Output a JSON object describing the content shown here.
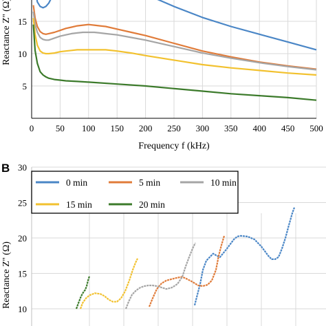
{
  "chart_data": [
    {
      "type": "line",
      "panel_label": "",
      "xlabel": "Frequency f (kHz)",
      "ylabel": "Reactance Z'' (Ω)",
      "xlim": [
        0,
        500
      ],
      "ylim": [
        0,
        20
      ],
      "x_ticks": [
        "0",
        "50",
        "100",
        "150",
        "200",
        "250",
        "300",
        "350",
        "400",
        "450",
        "500"
      ],
      "y_ticks": [
        "5",
        "10",
        "15"
      ],
      "grid": "both",
      "series": [
        {
          "color": "#4a86c6",
          "x": [
            5,
            10,
            15,
            20,
            25,
            30,
            40,
            60,
            80,
            100,
            120,
            150,
            200,
            250,
            300,
            350,
            400,
            450,
            500
          ],
          "y": [
            20.5,
            18.0,
            17.3,
            17.1,
            17.3,
            17.8,
            19.5,
            21.5,
            22.0,
            22.0,
            21.8,
            21.0,
            19.2,
            17.3,
            15.6,
            14.2,
            13.0,
            11.8,
            10.6
          ]
        },
        {
          "color": "#e07b39",
          "x": [
            3,
            6,
            10,
            15,
            20,
            25,
            30,
            40,
            50,
            60,
            70,
            80,
            90,
            100,
            110,
            120,
            130,
            150,
            175,
            200,
            250,
            300,
            350,
            400,
            450,
            500
          ],
          "y": [
            17.5,
            15.5,
            14.2,
            13.4,
            13.1,
            13.0,
            13.1,
            13.3,
            13.6,
            13.9,
            14.1,
            14.3,
            14.4,
            14.5,
            14.4,
            14.3,
            14.2,
            13.8,
            13.3,
            12.8,
            11.6,
            10.4,
            9.5,
            8.7,
            8.1,
            7.6
          ]
        },
        {
          "color": "#a5a5a5",
          "x": [
            3,
            6,
            10,
            15,
            20,
            25,
            30,
            40,
            50,
            60,
            70,
            80,
            90,
            100,
            110,
            120,
            130,
            150,
            175,
            200,
            250,
            300,
            350,
            400,
            450,
            500
          ],
          "y": [
            16.5,
            14.5,
            13.3,
            12.5,
            12.2,
            12.1,
            12.1,
            12.4,
            12.7,
            12.9,
            13.1,
            13.2,
            13.3,
            13.3,
            13.3,
            13.2,
            13.1,
            12.9,
            12.5,
            12.1,
            11.1,
            10.1,
            9.3,
            8.6,
            8.0,
            7.5
          ]
        },
        {
          "color": "#f2c12e",
          "x": [
            3,
            6,
            10,
            15,
            20,
            25,
            30,
            40,
            50,
            60,
            70,
            80,
            90,
            100,
            110,
            120,
            130,
            150,
            175,
            200,
            250,
            300,
            350,
            400,
            450,
            500
          ],
          "y": [
            15.5,
            13.0,
            11.3,
            10.4,
            10.1,
            10.0,
            10.0,
            10.1,
            10.3,
            10.4,
            10.5,
            10.6,
            10.6,
            10.6,
            10.6,
            10.6,
            10.6,
            10.4,
            10.1,
            9.7,
            9.0,
            8.3,
            7.8,
            7.4,
            7.0,
            6.7
          ]
        },
        {
          "color": "#3b7a2a",
          "x": [
            3,
            6,
            10,
            15,
            20,
            25,
            30,
            40,
            50,
            60,
            80,
            100,
            150,
            200,
            250,
            300,
            350,
            400,
            450,
            500
          ],
          "y": [
            14.5,
            10.5,
            8.5,
            7.2,
            6.7,
            6.4,
            6.2,
            6.0,
            5.9,
            5.8,
            5.7,
            5.6,
            5.3,
            5.0,
            4.6,
            4.2,
            3.8,
            3.5,
            3.2,
            2.8
          ]
        }
      ]
    },
    {
      "type": "line",
      "panel_label": "B",
      "xlabel": "",
      "ylabel": "Reactance Z'' (Ω)",
      "ylim": [
        10,
        30
      ],
      "y_ticks": [
        "10",
        "15",
        "20",
        "25",
        "30"
      ],
      "grid": "both",
      "legend": {
        "placement": "top",
        "entries": [
          {
            "label": "0 min",
            "color": "#4a86c6"
          },
          {
            "label": "5 min",
            "color": "#e07b39"
          },
          {
            "label": "10 min",
            "color": "#a5a5a5"
          },
          {
            "label": "15 min",
            "color": "#f2c12e"
          },
          {
            "label": "20 min",
            "color": "#3b7a2a"
          }
        ]
      },
      "series": [
        {
          "color": "#4a86c6",
          "x": [
            283,
            287,
            291,
            295,
            300,
            305,
            310,
            315,
            320,
            330,
            340,
            345,
            350,
            360,
            370,
            380,
            390,
            395,
            400,
            405,
            410,
            415,
            420,
            425,
            428
          ],
          "y": [
            10.5,
            12.0,
            13.5,
            15.5,
            16.8,
            17.3,
            17.8,
            17.5,
            17.3,
            18.5,
            19.8,
            20.2,
            20.3,
            20.2,
            19.8,
            18.8,
            17.5,
            17.0,
            17.0,
            17.3,
            18.5,
            20.0,
            21.8,
            23.5,
            24.3
          ]
        },
        {
          "color": "#e07b39",
          "x": [
            217,
            222,
            228,
            235,
            242,
            250,
            258,
            265,
            272,
            280,
            288,
            295,
            302,
            308,
            314,
            318,
            322,
            326
          ],
          "y": [
            10.3,
            11.5,
            12.8,
            13.6,
            14.0,
            14.2,
            14.4,
            14.5,
            14.2,
            13.8,
            13.3,
            13.2,
            13.4,
            14.0,
            15.5,
            17.5,
            19.0,
            20.3
          ]
        },
        {
          "color": "#a5a5a5",
          "x": [
            183,
            187,
            192,
            198,
            204,
            210,
            216,
            222,
            228,
            235,
            242,
            250,
            258,
            265,
            270,
            275,
            280,
            284
          ],
          "y": [
            10.0,
            11.0,
            12.0,
            12.6,
            13.0,
            13.2,
            13.3,
            13.3,
            13.2,
            13.0,
            12.8,
            13.0,
            13.5,
            14.5,
            16.0,
            17.3,
            18.5,
            19.3
          ]
        },
        {
          "color": "#f2c12e",
          "x": [
            117,
            120,
            125,
            130,
            138,
            146,
            152,
            158,
            164,
            170,
            176,
            182,
            188,
            193,
            197,
            200
          ],
          "y": [
            10.0,
            10.8,
            11.5,
            11.9,
            12.2,
            12.1,
            11.8,
            11.3,
            11.0,
            11.0,
            11.5,
            12.5,
            14.0,
            15.5,
            16.5,
            17.1
          ]
        },
        {
          "color": "#3b7a2a",
          "x": [
            111,
            114,
            118,
            121,
            124,
            126,
            128,
            130
          ],
          "y": [
            10.0,
            10.8,
            11.8,
            12.3,
            12.7,
            13.2,
            14.0,
            14.6
          ]
        }
      ]
    }
  ]
}
